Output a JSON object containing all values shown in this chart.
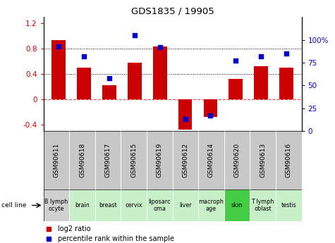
{
  "title": "GDS1835 / 19905",
  "categories": [
    "GSM90611",
    "GSM90618",
    "GSM90617",
    "GSM90615",
    "GSM90619",
    "GSM90612",
    "GSM90614",
    "GSM90620",
    "GSM90613",
    "GSM90616"
  ],
  "cell_lines": [
    "B lymph\nocyte",
    "brain",
    "breast",
    "cervix",
    "liposarc\noma",
    "liver",
    "macroph\nage",
    "skin",
    "T lymph\noblast",
    "testis"
  ],
  "cell_line_colors": [
    "#d0d0d0",
    "#c8f0c8",
    "#c8f0c8",
    "#c8f0c8",
    "#c8f0c8",
    "#c8f0c8",
    "#c8f0c8",
    "#44cc44",
    "#c8f0c8",
    "#c8f0c8"
  ],
  "gsm_box_color": "#c8c8c8",
  "log2_ratio": [
    0.93,
    0.5,
    0.22,
    0.58,
    0.83,
    -0.48,
    -0.27,
    0.32,
    0.53,
    0.5
  ],
  "percentile_values": [
    93,
    82,
    58,
    105,
    92,
    13,
    17,
    77,
    82,
    85
  ],
  "bar_color": "#cc0000",
  "dot_color": "#0000cc",
  "ylim_left": [
    -0.5,
    1.3
  ],
  "ylim_right": [
    0,
    125
  ],
  "yticks_left": [
    -0.4,
    0.0,
    0.4,
    0.8,
    1.2
  ],
  "yticks_right": [
    0,
    25,
    50,
    75,
    100
  ],
  "ytick_labels_right": [
    "0",
    "25",
    "50",
    "75",
    "100%"
  ],
  "hlines": [
    0.4,
    0.8
  ],
  "hline_zero": 0.0,
  "legend_items": [
    "log2 ratio",
    "percentile rank within the sample"
  ]
}
